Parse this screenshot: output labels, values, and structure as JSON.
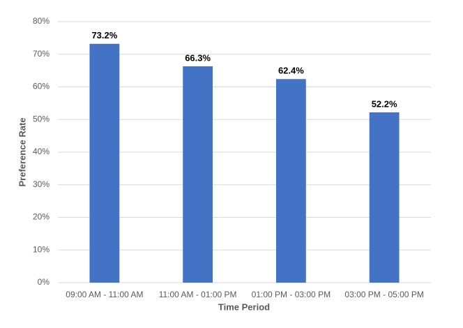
{
  "chart_data": {
    "type": "bar",
    "x_label": "Time Period",
    "y_label": "Preference Rate",
    "categories": [
      "09:00 AM - 11:00 AM",
      "11:00 AM - 01:00 PM",
      "01:00 PM - 03:00 PM",
      "03:00 PM - 05:00 PM"
    ],
    "values": [
      73.2,
      66.3,
      62.4,
      52.2
    ],
    "value_labels": [
      "73.2%",
      "66.3%",
      "62.4%",
      "52.2%"
    ],
    "color": "#4472c4",
    "ylim": [
      0,
      80
    ],
    "yticks": [
      {
        "value": 0,
        "label": "0%"
      },
      {
        "value": 10,
        "label": "10%"
      },
      {
        "value": 20,
        "label": "20%"
      },
      {
        "value": 30,
        "label": "30%"
      },
      {
        "value": 40,
        "label": "40%"
      },
      {
        "value": 50,
        "label": "50%"
      },
      {
        "value": 60,
        "label": "60%"
      },
      {
        "value": 70,
        "label": "70%"
      },
      {
        "value": 80,
        "label": "80%"
      }
    ],
    "grid": true
  }
}
